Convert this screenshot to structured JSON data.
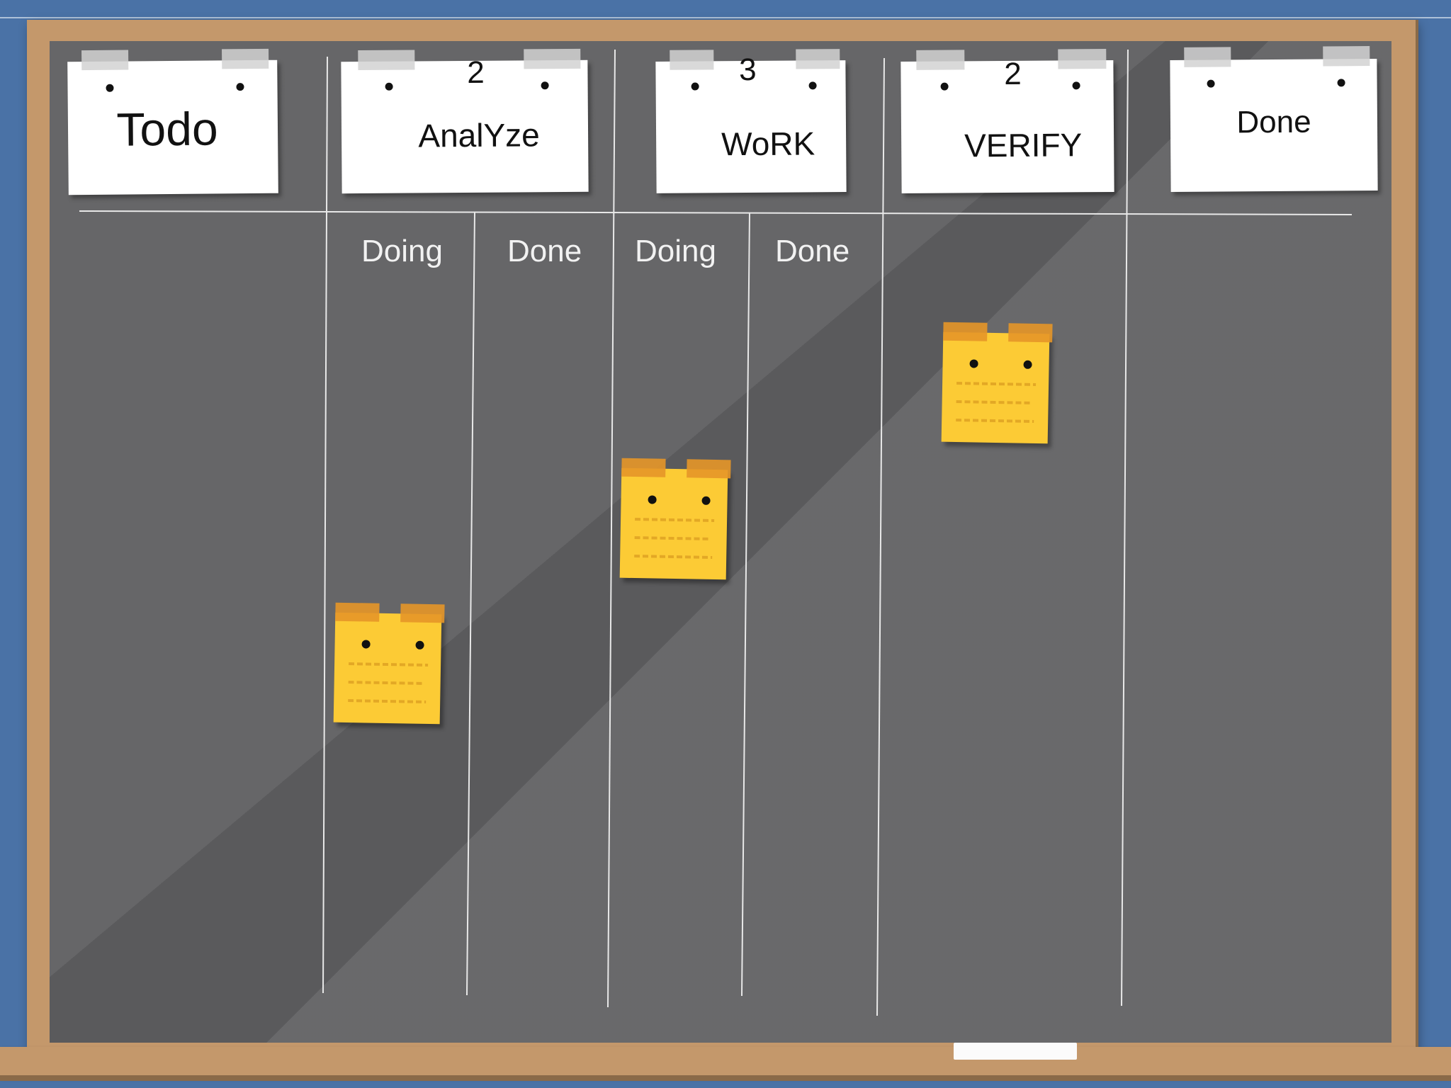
{
  "columns": [
    {
      "title": "Todo",
      "wip": ""
    },
    {
      "title": "AnalYze",
      "wip": "2"
    },
    {
      "title": "WoRK",
      "wip": "3"
    },
    {
      "title": "VERIFY",
      "wip": "2"
    },
    {
      "title": "Done",
      "wip": ""
    }
  ],
  "subcolumns": {
    "analyze_doing": "Doing",
    "analyze_done": "Done",
    "work_doing": "Doing",
    "work_done": "Done"
  },
  "colors": {
    "wall": "#4a72a6",
    "frame": "#c4986b",
    "board": "#5a5a5c",
    "sticky_note": "#fccb35"
  }
}
